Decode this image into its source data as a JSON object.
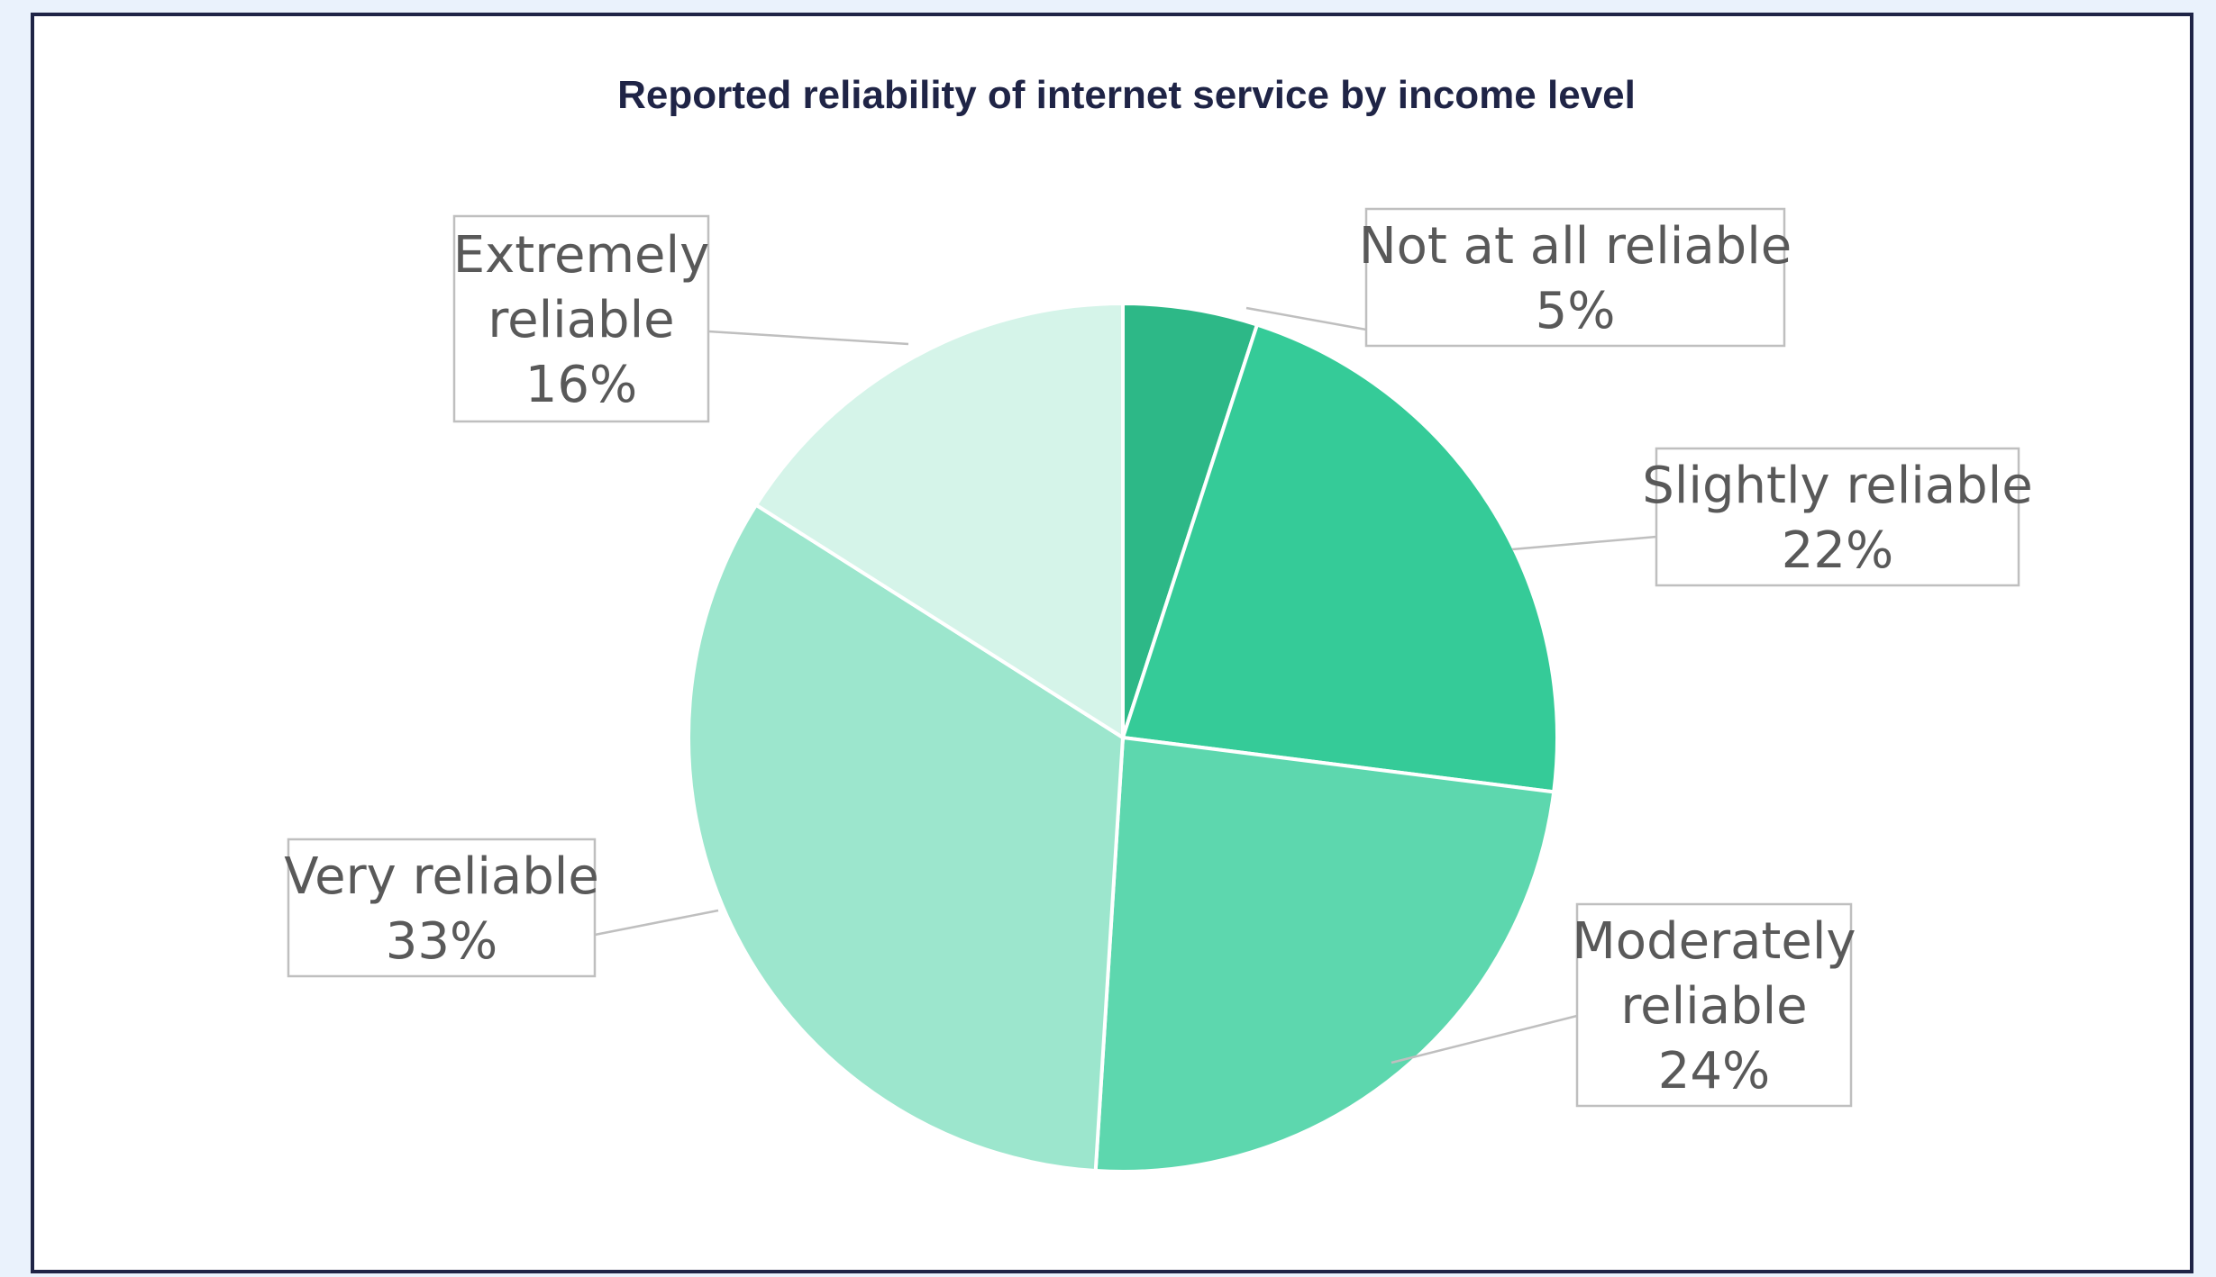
{
  "chart_data": {
    "type": "pie",
    "title": "Reported reliability of internet service by income level",
    "categories": [
      "Not at all reliable",
      "Slightly reliable",
      "Moderately reliable",
      "Very reliable",
      "Extremely reliable"
    ],
    "values": [
      5,
      22,
      24,
      33,
      16
    ],
    "data_labels": [
      [
        "Not at all reliable",
        "5%"
      ],
      [
        "Slightly reliable",
        "22%"
      ],
      [
        "Moderately",
        "reliable",
        "24%"
      ],
      [
        "Very reliable",
        "33%"
      ],
      [
        "Extremely",
        "reliable",
        "16%"
      ]
    ],
    "colors": [
      "#2db887",
      "#35cb98",
      "#5dd7ae",
      "#9ce6cd",
      "#d5f4e9"
    ],
    "start_angle": "12 o'clock",
    "direction": "clockwise",
    "legend": "none (data callouts)"
  }
}
